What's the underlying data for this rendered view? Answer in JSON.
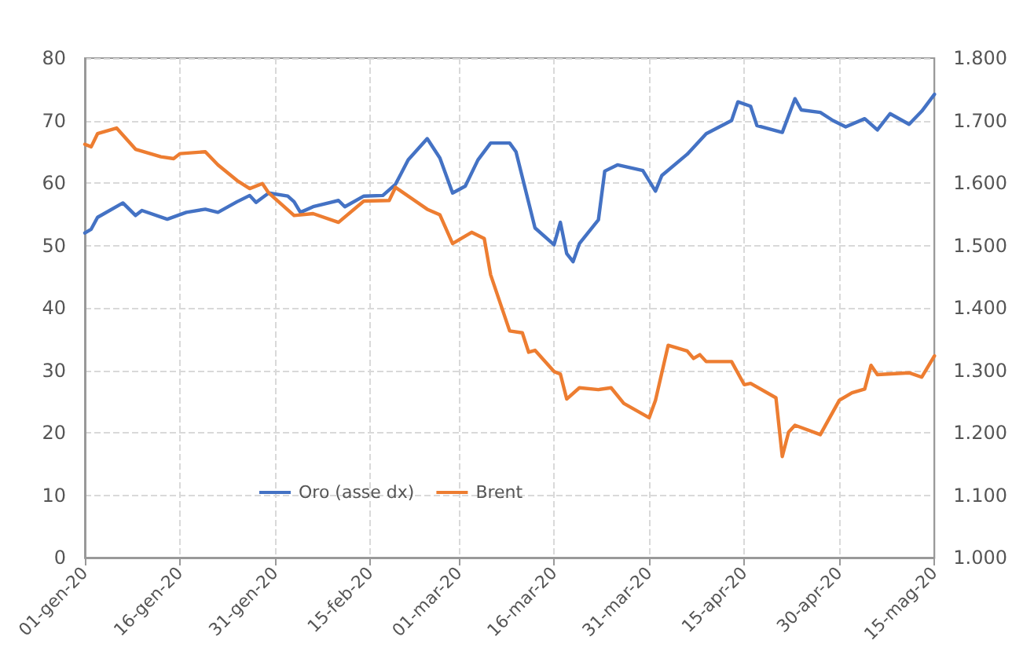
{
  "chart_data": {
    "type": "line",
    "series": [
      {
        "name": "Oro (asse dx)",
        "color": "#4472c4",
        "axis": "y2",
        "x": [
          "--01-01",
          "--01-02",
          "--01-03",
          "--01-07",
          "--01-09",
          "--01-10",
          "--01-14",
          "--01-17",
          "--01-20",
          "--01-22",
          "--01-25",
          "--01-27",
          "--01-28",
          "--01-30",
          "--02-02",
          "--02-03",
          "--02-04",
          "--02-06",
          "--02-10",
          "--02-11",
          "--02-14",
          "--02-17",
          "--02-19",
          "--02-21",
          "--02-24",
          "--02-26",
          "--02-28",
          "--03-02",
          "--03-04",
          "--03-06",
          "--03-09",
          "--03-10",
          "--03-13",
          "--03-16",
          "--03-17",
          "--03-18",
          "--03-19",
          "--03-20",
          "--03-23",
          "--03-24",
          "--03-26",
          "--03-30",
          "--04-01",
          "--04-02",
          "--04-06",
          "--04-09",
          "--04-13",
          "--04-14",
          "--04-16",
          "--04-17",
          "--04-21",
          "--04-23",
          "--04-24",
          "--04-27",
          "--04-29",
          "--05-01",
          "--05-04",
          "--05-06",
          "--05-08",
          "--05-11",
          "--05-13",
          "--05-15"
        ],
        "values": [
          1520,
          1526,
          1545,
          1568,
          1548,
          1556,
          1542,
          1553,
          1558,
          1553,
          1570,
          1580,
          1569,
          1584,
          1579,
          1570,
          1553,
          1562,
          1572,
          1562,
          1579,
          1580,
          1598,
          1637,
          1671,
          1640,
          1584,
          1595,
          1637,
          1664,
          1664,
          1650,
          1528,
          1501,
          1537,
          1487,
          1474,
          1503,
          1541,
          1619,
          1629,
          1620,
          1587,
          1612,
          1646,
          1679,
          1700,
          1730,
          1723,
          1692,
          1681,
          1735,
          1717,
          1713,
          1700,
          1690,
          1703,
          1685,
          1711,
          1694,
          1715,
          1742
        ]
      },
      {
        "name": "Brent",
        "color": "#ed7d31",
        "x": [
          "--01-01",
          "--01-02",
          "--01-03",
          "--01-06",
          "--01-09",
          "--01-13",
          "--01-15",
          "--01-16",
          "--01-20",
          "--01-22",
          "--01-25",
          "--01-27",
          "--01-29",
          "--01-30",
          "--02-03",
          "--02-06",
          "--02-10",
          "--02-14",
          "--02-18",
          "--02-19",
          "--02-24",
          "--02-26",
          "--02-28",
          "--03-03",
          "--03-05",
          "--03-06",
          "--03-09",
          "--03-11",
          "--03-12",
          "--03-13",
          "--03-16",
          "--03-17",
          "--03-18",
          "--03-20",
          "--03-23",
          "--03-25",
          "--03-27",
          "--03-31",
          "--04-01",
          "--04-03",
          "--04-06",
          "--04-07",
          "--04-08",
          "--04-09",
          "--04-13",
          "--04-15",
          "--04-16",
          "--04-20",
          "--04-21",
          "--04-22",
          "--04-23",
          "--04-27",
          "--04-30",
          "--05-02",
          "--05-04",
          "--05-05",
          "--05-06",
          "--05-11",
          "--05-13",
          "--05-15"
        ],
        "values": [
          66.2,
          65.8,
          67.9,
          68.8,
          65.4,
          64.2,
          63.9,
          64.7,
          65,
          62.9,
          60.4,
          59.1,
          59.9,
          58.4,
          54.8,
          55.1,
          53.7,
          57.1,
          57.2,
          59.3,
          55.8,
          54.9,
          50.3,
          52.1,
          51.1,
          45.3,
          36.3,
          36,
          32.9,
          33.2,
          29.8,
          29.4,
          25.4,
          27.2,
          26.9,
          27.2,
          24.7,
          22.4,
          25.2,
          34,
          33.1,
          31.9,
          32.5,
          31.4,
          31.4,
          27.7,
          27.9,
          25.6,
          16.2,
          20.1,
          21.2,
          19.7,
          25.2,
          26.4,
          27,
          30.8,
          29.3,
          29.6,
          28.9,
          32.3
        ]
      }
    ],
    "xlim": [
      "--01-01",
      "--05-15"
    ],
    "xticks": [
      {
        "value": "--01-01",
        "label": "01-gen-20"
      },
      {
        "value": "--01-16",
        "label": "16-gen-20"
      },
      {
        "value": "--01-31",
        "label": "31-gen-20"
      },
      {
        "value": "--02-15",
        "label": "15-feb-20"
      },
      {
        "value": "--03-01",
        "label": "01-mar-20"
      },
      {
        "value": "--03-16",
        "label": "16-mar-20"
      },
      {
        "value": "--03-31",
        "label": "31-mar-20"
      },
      {
        "value": "--04-15",
        "label": "15-apr-20"
      },
      {
        "value": "--04-30",
        "label": "30-apr-20"
      },
      {
        "value": "--05-15",
        "label": "15-mag-20"
      }
    ],
    "ylim": [
      0,
      80
    ],
    "yticks": [
      0,
      10,
      20,
      30,
      40,
      50,
      60,
      70,
      80
    ],
    "y2lim": [
      1000,
      1800
    ],
    "y2ticks": [
      {
        "value": 1000,
        "label": "1.000"
      },
      {
        "value": 1100,
        "label": "1.100"
      },
      {
        "value": 1200,
        "label": "1.200"
      },
      {
        "value": 1300,
        "label": "1.300"
      },
      {
        "value": 1400,
        "label": "1.400"
      },
      {
        "value": 1500,
        "label": "1.500"
      },
      {
        "value": 1600,
        "label": "1.600"
      },
      {
        "value": 1700,
        "label": "1.700"
      },
      {
        "value": 1800,
        "label": "1.800"
      }
    ],
    "grid": true,
    "legend": "bottom left",
    "marker": "none",
    "line_style": "solid"
  }
}
